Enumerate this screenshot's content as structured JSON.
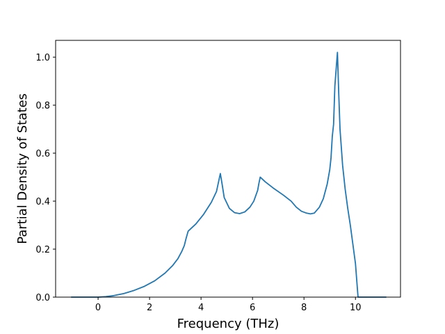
{
  "chart_data": {
    "type": "line",
    "title": "",
    "xlabel": "Frequency (THz)",
    "ylabel": "Partial Density of States",
    "xlim": [
      -1.65,
      11.75
    ],
    "ylim": [
      0.0,
      1.07
    ],
    "xticks": [
      0,
      2,
      4,
      6,
      8,
      10
    ],
    "yticks": [
      0.0,
      0.2,
      0.4,
      0.6,
      0.8,
      1.0
    ],
    "xtick_labels": [
      "0",
      "2",
      "4",
      "6",
      "8",
      "10"
    ],
    "ytick_labels": [
      "0.0",
      "0.2",
      "0.4",
      "0.6",
      "0.8",
      "1.0"
    ],
    "grid": false,
    "color": "#1f77b4",
    "series": [
      {
        "x": [
          -1.05,
          -0.5,
          0.0,
          0.3,
          0.6,
          1.0,
          1.4,
          1.8,
          2.2,
          2.6,
          2.9,
          3.1,
          3.25,
          3.35,
          3.42,
          3.5,
          3.8,
          4.1,
          4.4,
          4.6,
          4.75,
          4.82,
          4.9,
          5.1,
          5.3,
          5.5,
          5.7,
          5.9,
          6.05,
          6.2,
          6.25,
          6.3,
          6.5,
          6.8,
          7.2,
          7.5,
          7.7,
          7.9,
          8.1,
          8.25,
          8.4,
          8.6,
          8.75,
          8.9,
          9.0,
          9.05,
          9.1,
          9.15,
          9.2,
          9.25,
          9.3,
          9.35,
          9.4,
          9.5,
          9.6,
          9.7,
          9.8,
          9.9,
          10.0,
          10.1,
          10.15,
          10.2,
          10.5,
          11.2
        ],
        "y": [
          0.0,
          0.0,
          0.0,
          0.002,
          0.006,
          0.015,
          0.028,
          0.045,
          0.068,
          0.1,
          0.132,
          0.16,
          0.19,
          0.215,
          0.245,
          0.275,
          0.305,
          0.345,
          0.395,
          0.44,
          0.515,
          0.47,
          0.415,
          0.37,
          0.352,
          0.348,
          0.355,
          0.375,
          0.4,
          0.445,
          0.475,
          0.5,
          0.48,
          0.455,
          0.425,
          0.4,
          0.375,
          0.358,
          0.35,
          0.347,
          0.35,
          0.375,
          0.41,
          0.47,
          0.53,
          0.58,
          0.67,
          0.72,
          0.88,
          0.95,
          1.02,
          0.85,
          0.7,
          0.55,
          0.45,
          0.37,
          0.3,
          0.22,
          0.14,
          0.0,
          0.0,
          0.0,
          0.0,
          0.0
        ]
      }
    ]
  }
}
